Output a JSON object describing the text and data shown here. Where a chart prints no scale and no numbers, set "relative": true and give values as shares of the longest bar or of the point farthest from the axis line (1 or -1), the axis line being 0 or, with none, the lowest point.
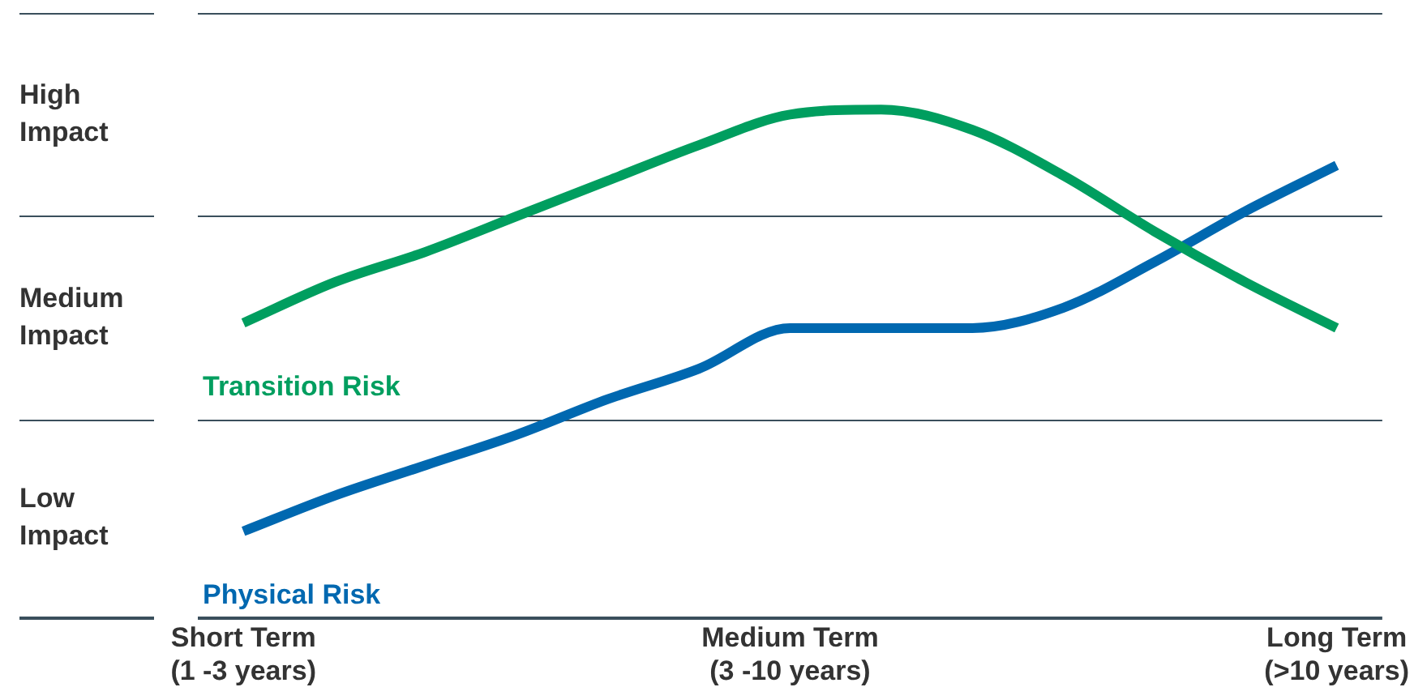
{
  "chart_data": {
    "type": "line",
    "relative": true,
    "categories": [
      "Short Term\n(1 -3 years)",
      null,
      null,
      null,
      null,
      null,
      "Medium Term\n(3 -10 years)",
      null,
      null,
      null,
      null,
      null,
      "Long Term\n(>10 years)"
    ],
    "annotations": [
      "High\nImpact",
      "Medium\nImpact",
      "Low\nImpact"
    ],
    "ref_lines": [
      {
        "axis": "y",
        "value": 1.19,
        "color": "#3a4f5c"
      },
      {
        "axis": "y",
        "value": 0.79,
        "color": "#3a4f5c"
      },
      {
        "axis": "y",
        "value": 0.39,
        "color": "#3a4f5c"
      }
    ],
    "legend": false,
    "marker": "none",
    "line_style": "solid",
    "series": [
      {
        "name": "Transition Risk",
        "color": "#009e5f",
        "values": [
          0.58,
          0.66,
          0.72,
          0.79,
          0.86,
          0.93,
          0.99,
          1.0,
          0.96,
          0.87,
          0.76,
          0.66,
          0.57
        ]
      },
      {
        "name": "Physical Risk",
        "color": "#0068b0",
        "values": [
          0.17,
          0.24,
          0.3,
          0.36,
          0.43,
          0.49,
          0.57,
          0.57,
          0.57,
          0.61,
          0.7,
          0.8,
          0.89
        ]
      }
    ]
  }
}
